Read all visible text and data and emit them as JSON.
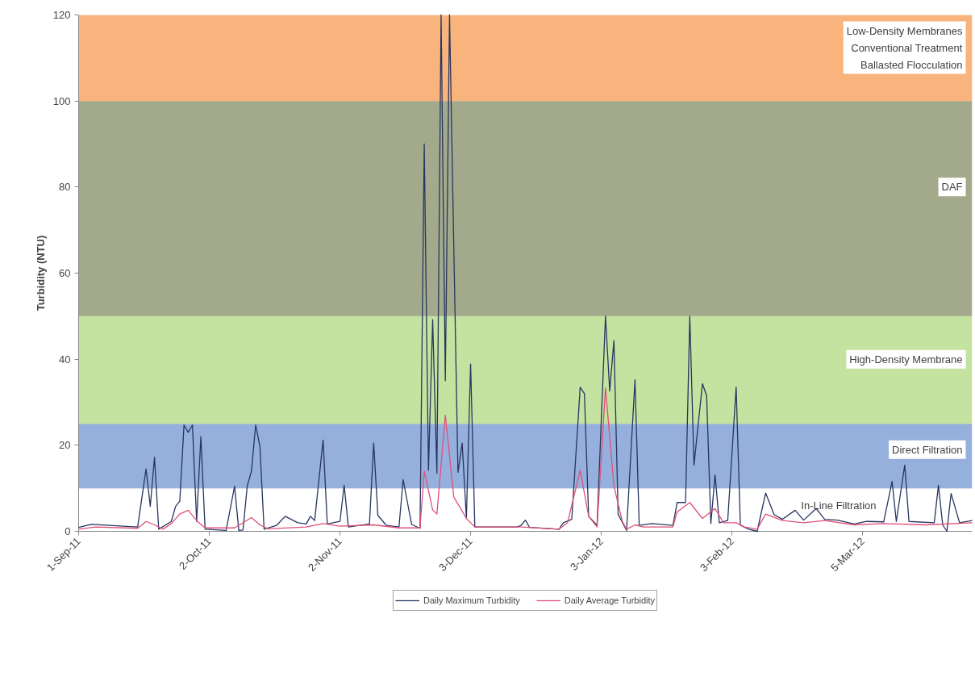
{
  "chart_data": {
    "type": "line",
    "ylabel": "Turbidity (NTU)",
    "xlim": [
      "2011-09-01",
      "2012-03-31"
    ],
    "xticks": [
      {
        "value": "2011-09-01",
        "label": "1-Sep-11"
      },
      {
        "value": "2011-10-02",
        "label": "2-Oct-11"
      },
      {
        "value": "2011-11-02",
        "label": "2-Nov-11"
      },
      {
        "value": "2011-12-03",
        "label": "3-Dec-11"
      },
      {
        "value": "2012-01-03",
        "label": "3-Jan-12"
      },
      {
        "value": "2012-02-03",
        "label": "3-Feb-12"
      },
      {
        "value": "2012-03-05",
        "label": "5-Mar-12"
      }
    ],
    "ylim": [
      0,
      120
    ],
    "yticks": [
      0,
      20,
      40,
      60,
      80,
      100,
      120
    ],
    "grid": "y",
    "legend": "bottom",
    "line_style": "solid",
    "marker": "none",
    "bands": [
      {
        "axis": "y",
        "from": 0,
        "to": 10,
        "label": "In-Line Filtration",
        "color": "#ffffff"
      },
      {
        "axis": "y",
        "from": 10,
        "to": 25,
        "label": "Direct Filtration",
        "color": "#95b0dc"
      },
      {
        "axis": "y",
        "from": 25,
        "to": 50,
        "label": "High-Density Membrane",
        "color": "#c4e3a1"
      },
      {
        "axis": "y",
        "from": 50,
        "to": 100,
        "label": "DAF",
        "color": "#a3aa8c"
      },
      {
        "axis": "y",
        "from": 100,
        "to": 120,
        "label": "Low-Density Membranes\nConventional Treatment\nBallasted Flocculation",
        "color": "#f8b47c"
      }
    ],
    "series": [
      {
        "name": "Daily Maximum Turbidity",
        "color": "#27365f",
        "x": [
          "2011-09-01",
          "2011-09-04",
          "2011-09-15",
          "2011-09-17",
          "2011-09-18",
          "2011-09-19",
          "2011-09-20",
          "2011-09-23",
          "2011-09-24",
          "2011-09-25",
          "2011-09-26",
          "2011-09-27",
          "2011-09-28",
          "2011-09-29",
          "2011-09-30",
          "2011-10-01",
          "2011-10-06",
          "2011-10-08",
          "2011-10-09",
          "2011-10-10",
          "2011-10-11",
          "2011-10-12",
          "2011-10-13",
          "2011-10-14",
          "2011-10-15",
          "2011-10-18",
          "2011-10-20",
          "2011-10-23",
          "2011-10-25",
          "2011-10-26",
          "2011-10-27",
          "2011-10-29",
          "2011-10-30",
          "2011-11-02",
          "2011-11-03",
          "2011-11-04",
          "2011-11-09",
          "2011-11-10",
          "2011-11-11",
          "2011-11-13",
          "2011-11-16",
          "2011-11-17",
          "2011-11-19",
          "2011-11-21",
          "2011-11-22",
          "2011-11-23",
          "2011-11-24",
          "2011-11-25",
          "2011-11-26",
          "2011-11-27",
          "2011-11-28",
          "2011-11-30",
          "2011-12-01",
          "2011-12-02",
          "2011-12-03",
          "2011-12-04",
          "2011-12-14",
          "2011-12-15",
          "2011-12-16",
          "2011-12-17",
          "2011-12-24",
          "2011-12-25",
          "2011-12-27",
          "2011-12-29",
          "2011-12-30",
          "2011-12-31",
          "2012-01-02",
          "2012-01-04",
          "2012-01-05",
          "2012-01-06",
          "2012-01-07",
          "2012-01-09",
          "2012-01-11",
          "2012-01-12",
          "2012-01-15",
          "2012-01-20",
          "2012-01-21",
          "2012-01-23",
          "2012-01-24",
          "2012-01-25",
          "2012-01-27",
          "2012-01-28",
          "2012-01-29",
          "2012-01-30",
          "2012-01-31",
          "2012-02-02",
          "2012-02-04",
          "2012-02-05",
          "2012-02-07",
          "2012-02-09",
          "2012-02-10",
          "2012-02-11",
          "2012-02-13",
          "2012-02-15",
          "2012-02-18",
          "2012-02-20",
          "2012-02-23",
          "2012-02-25",
          "2012-02-28",
          "2012-03-03",
          "2012-03-06",
          "2012-03-10",
          "2012-03-12",
          "2012-03-13",
          "2012-03-15",
          "2012-03-16",
          "2012-03-22",
          "2012-03-23",
          "2012-03-24",
          "2012-03-25",
          "2012-03-26",
          "2012-03-28",
          "2012-03-31"
        ],
        "values": [
          0.9,
          1.6,
          1.0,
          14.5,
          5.8,
          17.2,
          0.5,
          2.3,
          5.8,
          7,
          24.7,
          23,
          24.7,
          2.3,
          22,
          0.5,
          0.2,
          10.5,
          0.2,
          0.3,
          10.5,
          14,
          24.7,
          19.8,
          0.5,
          1.4,
          3.5,
          2,
          1.7,
          3.5,
          2.5,
          21.2,
          1.7,
          2.3,
          10.7,
          1,
          1.7,
          20.5,
          3.7,
          1.4,
          1,
          12,
          1.6,
          0.7,
          90,
          14.2,
          49.2,
          13.5,
          120,
          35,
          120,
          13.7,
          20.5,
          3,
          38.9,
          1,
          1,
          1.4,
          2.6,
          0.9,
          0.5,
          2,
          2.8,
          33.5,
          32,
          3.5,
          1.4,
          50,
          32.6,
          44.3,
          4,
          0.2,
          35.2,
          1.4,
          1.8,
          1.4,
          6.7,
          6.7,
          50,
          15.4,
          34.3,
          31.5,
          1.8,
          13.1,
          2,
          2.5,
          33.5,
          1.4,
          0.5,
          0,
          4.5,
          8.9,
          3.9,
          2.8,
          4.9,
          2.6,
          5.3,
          2.8,
          2.6,
          1.7,
          2.3,
          2.2,
          11.6,
          2.3,
          15.4,
          2.3,
          2,
          10.7,
          1.5,
          0,
          8.8,
          2,
          2.5
        ]
      },
      {
        "name": "Daily Average Turbidity",
        "color": "#e0507a",
        "x": [
          "2011-09-01",
          "2011-09-05",
          "2011-09-15",
          "2011-09-17",
          "2011-09-19",
          "2011-09-21",
          "2011-09-23",
          "2011-09-25",
          "2011-09-27",
          "2011-09-29",
          "2011-10-01",
          "2011-10-08",
          "2011-10-12",
          "2011-10-14",
          "2011-10-16",
          "2011-10-25",
          "2011-10-29",
          "2011-11-02",
          "2011-11-10",
          "2011-11-16",
          "2011-11-21",
          "2011-11-22",
          "2011-11-24",
          "2011-11-25",
          "2011-11-27",
          "2011-11-29",
          "2011-12-02",
          "2011-12-04",
          "2011-12-15",
          "2011-12-24",
          "2011-12-26",
          "2011-12-29",
          "2011-12-31",
          "2012-01-02",
          "2012-01-04",
          "2012-01-06",
          "2012-01-08",
          "2012-01-09",
          "2012-01-11",
          "2012-01-13",
          "2012-01-20",
          "2012-01-21",
          "2012-01-24",
          "2012-01-27",
          "2012-01-30",
          "2012-02-01",
          "2012-02-04",
          "2012-02-06",
          "2012-02-09",
          "2012-02-11",
          "2012-02-15",
          "2012-02-20",
          "2012-02-25",
          "2012-03-03",
          "2012-03-10",
          "2012-03-20",
          "2012-03-31"
        ],
        "values": [
          0.5,
          1.0,
          0.7,
          2.3,
          1.5,
          0.5,
          1.8,
          4,
          4.9,
          2.5,
          0.8,
          0.8,
          3.2,
          1.5,
          0.6,
          1.0,
          1.8,
          1.2,
          1.5,
          0.8,
          0.8,
          14,
          5,
          4,
          27,
          8,
          3,
          1,
          1,
          0.5,
          2,
          14.2,
          3.5,
          1,
          33.3,
          10.5,
          2.3,
          0.5,
          1.5,
          1,
          1,
          4.5,
          6.7,
          3,
          5.3,
          2,
          2,
          1,
          0.5,
          4,
          2.5,
          2,
          2.5,
          1.5,
          1.8,
          1.5,
          2
        ]
      }
    ]
  }
}
